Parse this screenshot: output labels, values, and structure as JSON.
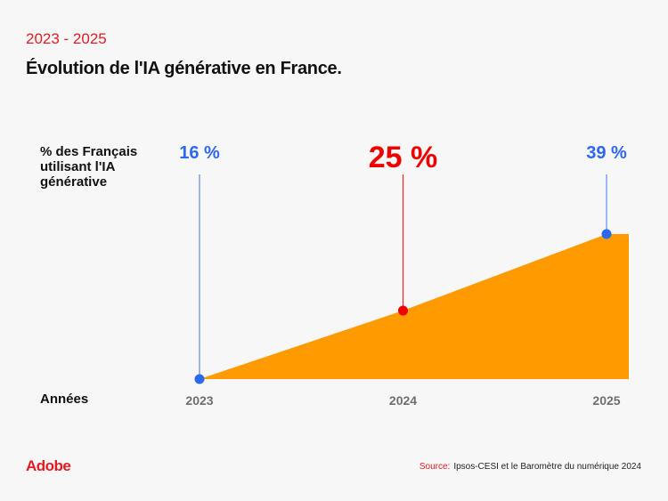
{
  "header": {
    "subtitle": "2023 - 2025",
    "title": "Évolution de l'IA générative en France."
  },
  "chart_data": {
    "type": "area",
    "title": "Évolution de l'IA générative en France.",
    "subtitle": "2023 - 2025",
    "ylabel": "% des Français utilisant l'IA générative",
    "xlabel": "Années",
    "categories": [
      "2023",
      "2024",
      "2025"
    ],
    "values": [
      16,
      25,
      39
    ],
    "value_labels": [
      "16 %",
      "25 %",
      "39 %"
    ],
    "highlight_index": 1,
    "grid": false,
    "colors": {
      "area": "#ff9a00",
      "point": "#2d68f0",
      "highlight": "#ee0000",
      "year_label": "#6e6e6e"
    }
  },
  "footer": {
    "logo": "Adobe",
    "source_label": "Source:",
    "source_text": "Ipsos-CESI et le Baromètre du numérique 2024"
  }
}
